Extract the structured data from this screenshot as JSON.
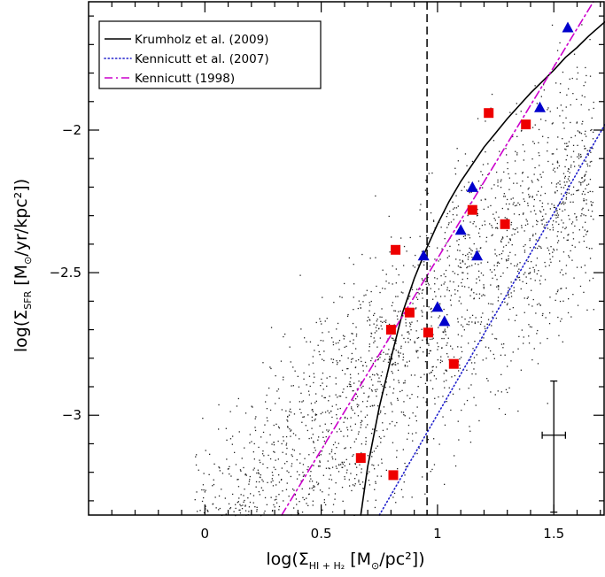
{
  "chart_data": {
    "type": "scatter",
    "title": "",
    "xlabel": {
      "prefix": "log(Σ",
      "sub": "HI + H₂",
      "suffix": " [M",
      "sun": "⊙",
      "unit": "/pc²])"
    },
    "ylabel": {
      "prefix": "log(Σ",
      "sub": "SFR",
      "suffix": " [M",
      "sun": "⊙",
      "unit": "/yr/kpc²])"
    },
    "xlim": [
      -0.5,
      1.72
    ],
    "ylim": [
      -3.35,
      -1.55
    ],
    "xticks": [
      0,
      0.5,
      1,
      1.5
    ],
    "xtick_labels": [
      "0",
      "0.5",
      "1",
      "1.5"
    ],
    "yticks": [
      -3,
      -2.5,
      -2
    ],
    "ytick_labels": [
      "−3",
      "−2.5",
      "−2"
    ],
    "threshold_x": 0.955,
    "lines": [
      {
        "name": "Krumholz et al. (2009)",
        "style": "solid",
        "color": "#000000",
        "x": [
          0.67,
          0.7,
          0.75,
          0.8,
          0.85,
          0.9,
          0.95,
          1.0,
          1.05,
          1.1,
          1.15,
          1.2,
          1.25,
          1.3,
          1.35,
          1.4,
          1.45,
          1.5,
          1.55,
          1.6,
          1.65,
          1.72
        ],
        "y": [
          -3.35,
          -3.18,
          -2.97,
          -2.8,
          -2.64,
          -2.52,
          -2.42,
          -2.33,
          -2.25,
          -2.18,
          -2.12,
          -2.06,
          -2.01,
          -1.96,
          -1.915,
          -1.87,
          -1.83,
          -1.79,
          -1.745,
          -1.71,
          -1.67,
          -1.62
        ]
      },
      {
        "name": "Kennicutt et al. (2007)",
        "style": "dotted",
        "color": "#1f1fcc",
        "x": [
          0.75,
          1.72
        ],
        "y": [
          -3.35,
          -1.98
        ]
      },
      {
        "name": "Kennicutt (1998)",
        "style": "dashdot",
        "color": "#cc00cc",
        "x": [
          0.33,
          1.67
        ],
        "y": [
          -3.35,
          -1.55
        ]
      }
    ],
    "series": [
      {
        "name": "squares",
        "marker": "square",
        "color": "#ee0000",
        "x": [
          0.67,
          0.81,
          0.82,
          0.8,
          0.88,
          0.96,
          1.07,
          1.15,
          1.22,
          1.29,
          1.38
        ],
        "y": [
          -3.15,
          -3.21,
          -2.42,
          -2.7,
          -2.64,
          -2.71,
          -2.82,
          -2.28,
          -1.94,
          -2.33,
          -1.98
        ]
      },
      {
        "name": "triangles",
        "marker": "triangle",
        "color": "#0000cc",
        "x": [
          0.94,
          1.0,
          1.03,
          1.1,
          1.15,
          1.17,
          1.44,
          1.56
        ],
        "y": [
          -2.44,
          -2.62,
          -2.67,
          -2.35,
          -2.2,
          -2.44,
          -1.92,
          -1.64
        ]
      }
    ],
    "error_bar": {
      "x": 1.5,
      "y": -3.07,
      "xerr": 0.05,
      "yerr_up": 0.19,
      "yerr_down": 0.27
    },
    "legend": {
      "position": "top-left",
      "entries": [
        "Krumholz et al. (2009)",
        "Kennicutt et al. (2007)",
        "Kennicutt (1998)"
      ]
    }
  }
}
